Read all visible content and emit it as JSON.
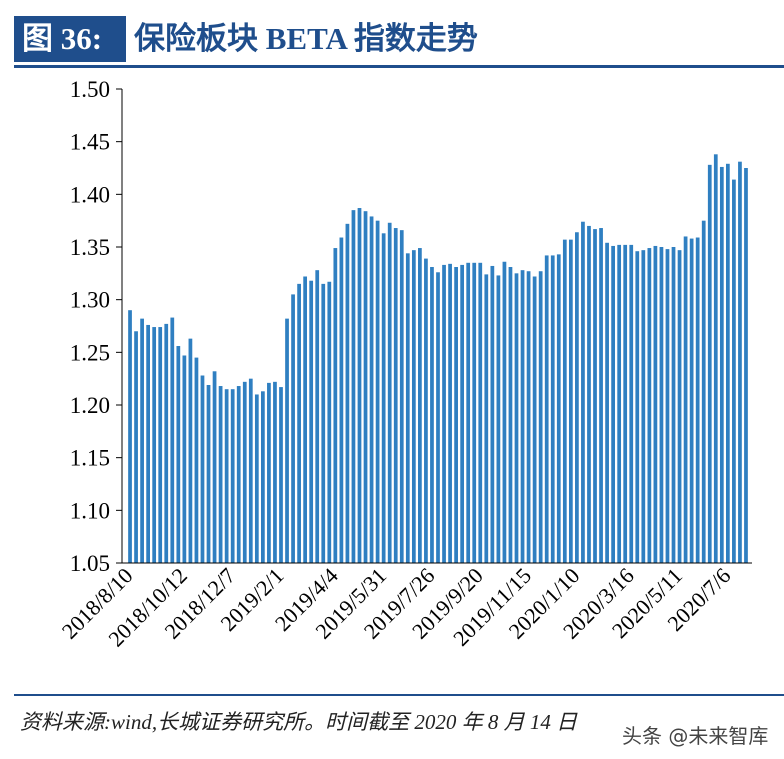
{
  "header": {
    "figure_label": "图 36:",
    "title": "保险板块 BETA 指数走势"
  },
  "footer": {
    "source": "资料来源:wind,长城证券研究所。时间截至 2020 年 8 月 14 日",
    "watermark": "头条 @未来智库"
  },
  "colors": {
    "accent": "#1f4e8c",
    "bar": "#2f7fc1",
    "axis": "#000000"
  },
  "chart_data": {
    "type": "bar",
    "title": "保险板块 BETA 指数走势",
    "xlabel": "",
    "ylabel": "",
    "ylim": [
      1.05,
      1.5
    ],
    "yticks": [
      1.05,
      1.1,
      1.15,
      1.2,
      1.25,
      1.3,
      1.35,
      1.4,
      1.45,
      1.5
    ],
    "ytick_labels": [
      "1.05",
      "1.10",
      "1.15",
      "1.20",
      "1.25",
      "1.30",
      "1.35",
      "1.40",
      "1.45",
      "1.50"
    ],
    "xtick_labels": [
      {
        "index": 0,
        "label": "2018/8/10"
      },
      {
        "index": 9,
        "label": "2018/10/12"
      },
      {
        "index": 17,
        "label": "2018/12/7"
      },
      {
        "index": 25,
        "label": "2019/2/1"
      },
      {
        "index": 34,
        "label": "2019/4/4"
      },
      {
        "index": 42,
        "label": "2019/5/31"
      },
      {
        "index": 50,
        "label": "2019/7/26"
      },
      {
        "index": 58,
        "label": "2019/9/20"
      },
      {
        "index": 66,
        "label": "2019/11/15"
      },
      {
        "index": 74,
        "label": "2020/1/10"
      },
      {
        "index": 83,
        "label": "2020/3/16"
      },
      {
        "index": 91,
        "label": "2020/5/11"
      },
      {
        "index": 99,
        "label": "2020/7/6"
      }
    ],
    "values": [
      1.29,
      1.27,
      1.282,
      1.276,
      1.274,
      1.274,
      1.277,
      1.283,
      1.256,
      1.247,
      1.263,
      1.245,
      1.228,
      1.219,
      1.232,
      1.218,
      1.215,
      1.215,
      1.218,
      1.222,
      1.225,
      1.21,
      1.213,
      1.221,
      1.222,
      1.217,
      1.282,
      1.305,
      1.315,
      1.322,
      1.318,
      1.328,
      1.315,
      1.317,
      1.349,
      1.359,
      1.372,
      1.385,
      1.387,
      1.384,
      1.379,
      1.375,
      1.363,
      1.373,
      1.368,
      1.366,
      1.344,
      1.347,
      1.349,
      1.339,
      1.331,
      1.326,
      1.333,
      1.334,
      1.331,
      1.333,
      1.335,
      1.335,
      1.335,
      1.324,
      1.332,
      1.323,
      1.336,
      1.331,
      1.325,
      1.328,
      1.327,
      1.322,
      1.327,
      1.342,
      1.342,
      1.343,
      1.357,
      1.357,
      1.364,
      1.374,
      1.37,
      1.367,
      1.368,
      1.354,
      1.351,
      1.352,
      1.352,
      1.352,
      1.346,
      1.347,
      1.349,
      1.351,
      1.35,
      1.348,
      1.35,
      1.347,
      1.36,
      1.358,
      1.359,
      1.375,
      1.428,
      1.438,
      1.426,
      1.429,
      1.414,
      1.431,
      1.425
    ]
  }
}
